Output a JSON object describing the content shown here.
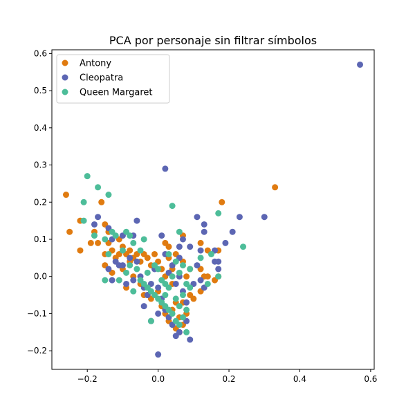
{
  "chart_data": {
    "type": "scatter",
    "title": "PCA por personaje sin filtrar símbolos",
    "xlabel": "",
    "ylabel": "",
    "xlim": [
      -0.3,
      0.61
    ],
    "ylim": [
      -0.25,
      0.61
    ],
    "xticks": [
      -0.2,
      0.0,
      0.2,
      0.4,
      0.6
    ],
    "xtick_labels": [
      "−0.2",
      "0.0",
      "0.2",
      "0.4",
      "0.6"
    ],
    "yticks": [
      -0.2,
      -0.1,
      0.0,
      0.1,
      0.2,
      0.3,
      0.4,
      0.5,
      0.6
    ],
    "ytick_labels": [
      "−0.2",
      "−0.1",
      "0.0",
      "0.1",
      "0.2",
      "0.3",
      "0.4",
      "0.5",
      "0.6"
    ],
    "grid": false,
    "legend_position": "top-left",
    "series": [
      {
        "name": "Antony",
        "color": "#e07b10",
        "points": [
          [
            -0.26,
            0.22
          ],
          [
            -0.25,
            0.12
          ],
          [
            -0.22,
            0.15
          ],
          [
            -0.22,
            0.07
          ],
          [
            -0.19,
            0.09
          ],
          [
            -0.18,
            0.12
          ],
          [
            -0.17,
            0.09
          ],
          [
            -0.16,
            0.2
          ],
          [
            -0.15,
            0.14
          ],
          [
            -0.14,
            0.12
          ],
          [
            -0.15,
            0.06
          ],
          [
            -0.14,
            0.09
          ],
          [
            -0.13,
            0.07
          ],
          [
            -0.12,
            0.05
          ],
          [
            -0.11,
            0.1
          ],
          [
            -0.1,
            0.08
          ],
          [
            -0.09,
            0.06
          ],
          [
            -0.08,
            0.07
          ],
          [
            -0.07,
            0.05
          ],
          [
            -0.06,
            0.06
          ],
          [
            -0.05,
            0.04
          ],
          [
            -0.04,
            0.06
          ],
          [
            -0.03,
            0.05
          ],
          [
            -0.02,
            0.03
          ],
          [
            -0.01,
            0.06
          ],
          [
            0.0,
            0.04
          ],
          [
            0.01,
            0.02
          ],
          [
            0.02,
            0.0
          ],
          [
            -0.15,
            0.03
          ],
          [
            -0.13,
            0.01
          ],
          [
            -0.1,
            0.02
          ],
          [
            -0.09,
            -0.03
          ],
          [
            -0.07,
            0.0
          ],
          [
            -0.05,
            -0.02
          ],
          [
            -0.04,
            -0.05
          ],
          [
            -0.03,
            -0.03
          ],
          [
            -0.02,
            -0.06
          ],
          [
            0.0,
            -0.04
          ],
          [
            0.01,
            -0.08
          ],
          [
            0.02,
            -0.1
          ],
          [
            0.03,
            -0.12
          ],
          [
            0.04,
            -0.09
          ],
          [
            0.05,
            -0.07
          ],
          [
            0.06,
            -0.11
          ],
          [
            0.07,
            -0.13
          ],
          [
            0.08,
            -0.1
          ],
          [
            0.06,
            -0.15
          ],
          [
            0.05,
            -0.14
          ],
          [
            0.07,
            -0.07
          ],
          [
            0.09,
            -0.05
          ],
          [
            0.08,
            0.0
          ],
          [
            0.09,
            0.02
          ],
          [
            0.07,
            0.04
          ],
          [
            0.05,
            0.06
          ],
          [
            0.04,
            0.02
          ],
          [
            0.03,
            0.08
          ],
          [
            0.07,
            0.11
          ],
          [
            0.12,
            0.09
          ],
          [
            0.12,
            0.02
          ],
          [
            0.14,
            0.07
          ],
          [
            0.13,
            0.0
          ],
          [
            0.14,
            0.0
          ],
          [
            0.16,
            -0.01
          ],
          [
            0.17,
            0.07
          ],
          [
            0.17,
            0.0
          ],
          [
            0.18,
            0.2
          ],
          [
            0.33,
            0.24
          ],
          [
            0.12,
            -0.04
          ],
          [
            0.1,
            -0.06
          ],
          [
            0.02,
            0.09
          ],
          [
            -0.03,
            -0.05
          ],
          [
            -0.08,
            0.04
          ],
          [
            -0.11,
            0.06
          ],
          [
            0.03,
            0.05
          ],
          [
            0.04,
            -0.02
          ]
        ]
      },
      {
        "name": "Cleopatra",
        "color": "#5c66b3",
        "points": [
          [
            0.57,
            0.57
          ],
          [
            0.02,
            0.29
          ],
          [
            0.11,
            0.16
          ],
          [
            0.23,
            0.16
          ],
          [
            0.3,
            0.16
          ],
          [
            0.13,
            0.14
          ],
          [
            0.21,
            0.12
          ],
          [
            0.19,
            0.09
          ],
          [
            0.13,
            0.12
          ],
          [
            0.12,
            0.07
          ],
          [
            0.16,
            0.07
          ],
          [
            0.17,
            0.04
          ],
          [
            0.16,
            0.04
          ],
          [
            0.17,
            0.02
          ],
          [
            0.11,
            0.03
          ],
          [
            0.12,
            -0.01
          ],
          [
            0.13,
            -0.03
          ],
          [
            -0.18,
            0.14
          ],
          [
            -0.17,
            0.16
          ],
          [
            -0.14,
            0.13
          ],
          [
            -0.06,
            0.15
          ],
          [
            -0.13,
            0.1
          ],
          [
            -0.1,
            0.11
          ],
          [
            -0.07,
            0.11
          ],
          [
            -0.14,
            0.02
          ],
          [
            -0.12,
            0.04
          ],
          [
            -0.1,
            0.03
          ],
          [
            -0.08,
            0.05
          ],
          [
            -0.06,
            0.04
          ],
          [
            -0.13,
            -0.01
          ],
          [
            -0.09,
            -0.02
          ],
          [
            -0.07,
            -0.01
          ],
          [
            -0.05,
            0.0
          ],
          [
            -0.04,
            -0.03
          ],
          [
            -0.03,
            -0.05
          ],
          [
            -0.02,
            -0.02
          ],
          [
            0.0,
            -0.03
          ],
          [
            0.01,
            -0.06
          ],
          [
            0.02,
            -0.09
          ],
          [
            0.03,
            -0.11
          ],
          [
            0.04,
            -0.13
          ],
          [
            0.05,
            -0.16
          ],
          [
            0.06,
            -0.15
          ],
          [
            0.08,
            -0.12
          ],
          [
            0.09,
            -0.17
          ],
          [
            0.0,
            -0.21
          ],
          [
            -0.02,
            -0.12
          ],
          [
            -0.04,
            -0.08
          ],
          [
            0.01,
            0.11
          ],
          [
            0.02,
            0.06
          ],
          [
            0.04,
            0.03
          ],
          [
            0.06,
            0.05
          ],
          [
            0.06,
            0.08
          ],
          [
            0.07,
            0.1
          ],
          [
            0.09,
            0.08
          ],
          [
            0.03,
            0.01
          ],
          [
            0.05,
            -0.02
          ],
          [
            0.07,
            -0.04
          ],
          [
            0.08,
            -0.07
          ],
          [
            0.06,
            0.0
          ],
          [
            0.1,
            -0.02
          ],
          [
            -0.01,
            0.02
          ],
          [
            -0.11,
            0.03
          ],
          [
            0.0,
            -0.1
          ]
        ]
      },
      {
        "name": "Queen Margaret",
        "color": "#4dbd99",
        "points": [
          [
            -0.2,
            0.27
          ],
          [
            -0.17,
            0.24
          ],
          [
            -0.21,
            0.2
          ],
          [
            -0.14,
            0.22
          ],
          [
            -0.21,
            0.15
          ],
          [
            -0.18,
            0.11
          ],
          [
            -0.15,
            0.1
          ],
          [
            -0.13,
            0.12
          ],
          [
            -0.12,
            0.11
          ],
          [
            -0.09,
            0.12
          ],
          [
            -0.08,
            0.11
          ],
          [
            -0.04,
            0.1
          ],
          [
            -0.07,
            0.09
          ],
          [
            -0.05,
            0.07
          ],
          [
            -0.14,
            0.06
          ],
          [
            -0.1,
            0.07
          ],
          [
            -0.11,
            -0.01
          ],
          [
            -0.15,
            -0.01
          ],
          [
            -0.09,
            0.01
          ],
          [
            -0.08,
            0.03
          ],
          [
            -0.06,
            0.02
          ],
          [
            -0.05,
            -0.01
          ],
          [
            -0.04,
            -0.02
          ],
          [
            -0.03,
            -0.03
          ],
          [
            -0.02,
            -0.04
          ],
          [
            -0.01,
            -0.05
          ],
          [
            0.0,
            -0.06
          ],
          [
            0.01,
            -0.07
          ],
          [
            0.02,
            -0.08
          ],
          [
            0.03,
            -0.09
          ],
          [
            0.04,
            -0.1
          ],
          [
            0.05,
            -0.12
          ],
          [
            0.06,
            -0.13
          ],
          [
            0.07,
            -0.11
          ],
          [
            0.08,
            -0.09
          ],
          [
            0.04,
            0.19
          ],
          [
            0.06,
            0.12
          ],
          [
            0.03,
            0.06
          ],
          [
            0.05,
            0.04
          ],
          [
            0.07,
            0.03
          ],
          [
            0.09,
            0.02
          ],
          [
            0.06,
            0.01
          ],
          [
            0.04,
            0.0
          ],
          [
            0.08,
            -0.02
          ],
          [
            0.09,
            -0.03
          ],
          [
            0.07,
            -0.05
          ],
          [
            0.12,
            0.05
          ],
          [
            0.15,
            0.06
          ],
          [
            0.14,
            -0.02
          ],
          [
            0.17,
            0.0
          ],
          [
            0.17,
            0.17
          ],
          [
            0.24,
            0.08
          ],
          [
            -0.01,
            0.03
          ],
          [
            -0.02,
            -0.12
          ],
          [
            0.0,
            0.02
          ],
          [
            0.02,
            -0.02
          ],
          [
            -0.03,
            0.01
          ],
          [
            0.05,
            -0.06
          ],
          [
            0.08,
            -0.15
          ],
          [
            0.03,
            -0.03
          ],
          [
            -0.07,
            -0.04
          ],
          [
            0.01,
            -0.01
          ],
          [
            0.06,
            -0.08
          ],
          [
            0.02,
            -0.05
          ]
        ]
      }
    ]
  }
}
